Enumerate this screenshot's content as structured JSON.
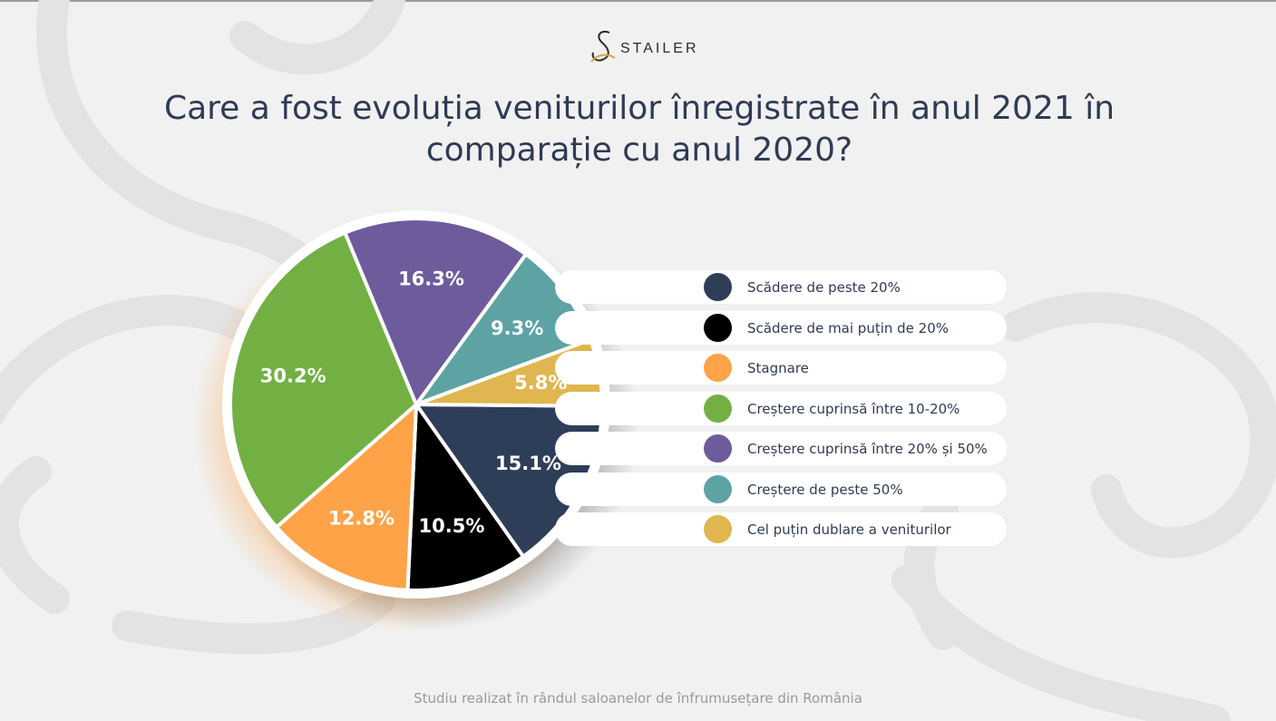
{
  "brand": {
    "name": "STAILER"
  },
  "title": "Care a fost evoluția veniturilor înregistrate în anul 2021 în comparație cu anul 2020?",
  "footer": "Studiu realizat în rândul saloanelor de înfrumusețare din România",
  "chart_data": {
    "type": "pie",
    "title": "Care a fost evoluția veniturilor înregistrate în anul 2021 în comparație cu anul 2020?",
    "legend_position": "right",
    "slices": [
      {
        "label": "Scădere de peste 20%",
        "value": 15.1,
        "display": "15.1%",
        "color": "#2e3e58"
      },
      {
        "label": "Scădere de mai puțin de 20%",
        "value": 10.5,
        "display": "10.5%",
        "color": "#000000"
      },
      {
        "label": "Stagnare",
        "value": 12.8,
        "display": "12.8%",
        "color": "#ffa348"
      },
      {
        "label": "Creștere cuprinsă între 10-20%",
        "value": 30.2,
        "display": "30.2%",
        "color": "#72b044"
      },
      {
        "label": "Creștere cuprinsă între 20% și 50%",
        "value": 16.3,
        "display": "16.3%",
        "color": "#6e5b9c"
      },
      {
        "label": "Creștere de peste 50%",
        "value": 9.3,
        "display": "9.3%",
        "color": "#5ea3a4"
      },
      {
        "label": "Cel puțin dublare a veniturilor",
        "value": 5.8,
        "display": "5.8%",
        "color": "#dfb64f"
      }
    ]
  }
}
